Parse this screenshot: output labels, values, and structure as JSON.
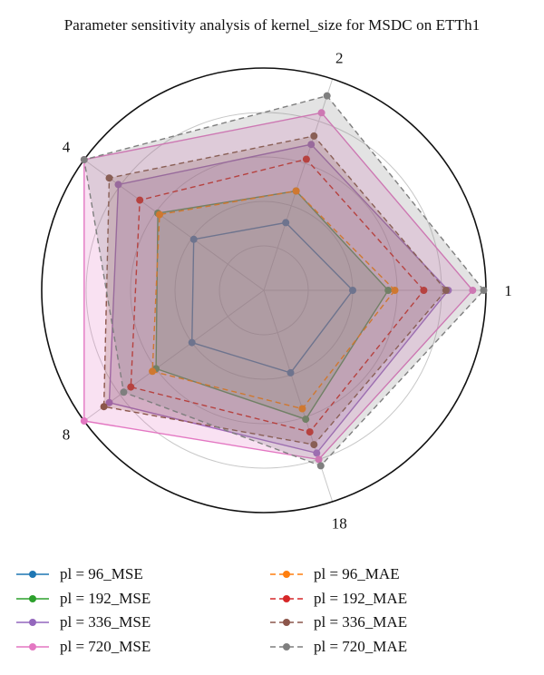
{
  "chart_data": {
    "type": "radar",
    "title": "Parameter sensitivity analysis of kernel_size for MSDC on ETTh1",
    "axes": [
      "1",
      "2",
      "4",
      "8",
      "18"
    ],
    "rmax": 1.0,
    "grid_rings": [
      0.2,
      0.4,
      0.6,
      0.8
    ],
    "series": [
      {
        "name": "pl = 96_MSE",
        "color": "#1f77b4",
        "dashed": false,
        "fill": false,
        "values": [
          0.4,
          0.32,
          0.39,
          0.4,
          0.39
        ]
      },
      {
        "name": "pl = 192_MSE",
        "color": "#2ca02c",
        "dashed": false,
        "fill": true,
        "values": [
          0.56,
          0.47,
          0.59,
          0.6,
          0.61
        ]
      },
      {
        "name": "pl = 336_MSE",
        "color": "#9467bd",
        "dashed": false,
        "fill": true,
        "values": [
          0.83,
          0.69,
          0.81,
          0.86,
          0.77
        ]
      },
      {
        "name": "pl = 720_MSE",
        "color": "#e377c2",
        "dashed": false,
        "fill": true,
        "values": [
          0.94,
          0.84,
          1.0,
          1.0,
          0.8
        ]
      },
      {
        "name": "pl = 96_MAE",
        "color": "#ff7f0e",
        "dashed": true,
        "fill": false,
        "values": [
          0.59,
          0.47,
          0.58,
          0.62,
          0.56
        ]
      },
      {
        "name": "pl = 192_MAE",
        "color": "#d62728",
        "dashed": true,
        "fill": false,
        "values": [
          0.72,
          0.62,
          0.69,
          0.74,
          0.67
        ]
      },
      {
        "name": "pl = 336_MAE",
        "color": "#8c564b",
        "dashed": true,
        "fill": true,
        "values": [
          0.82,
          0.73,
          0.86,
          0.89,
          0.73
        ]
      },
      {
        "name": "pl = 720_MAE",
        "color": "#7f7f7f",
        "dashed": true,
        "fill": true,
        "values": [
          0.99,
          0.92,
          1.0,
          0.78,
          0.83
        ]
      }
    ],
    "legend_position": "bottom"
  }
}
